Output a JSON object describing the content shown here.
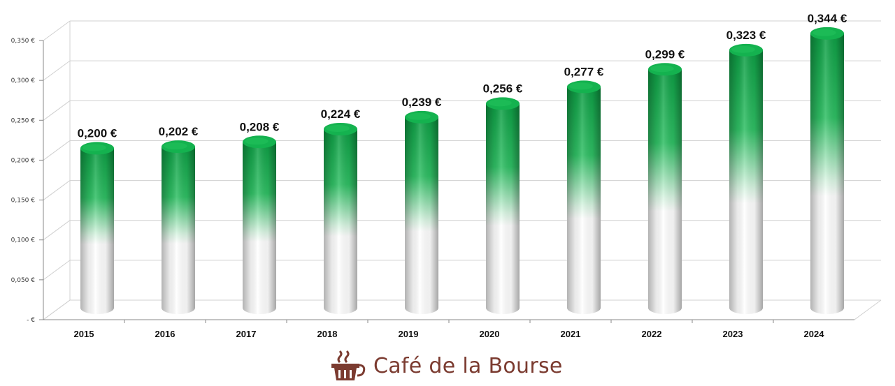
{
  "chart_data": {
    "type": "bar",
    "title": "",
    "xlabel": "",
    "ylabel": "",
    "categories": [
      "2015",
      "2016",
      "2017",
      "2018",
      "2019",
      "2020",
      "2021",
      "2022",
      "2023",
      "2024"
    ],
    "values": [
      0.2,
      0.202,
      0.208,
      0.224,
      0.239,
      0.256,
      0.277,
      0.299,
      0.323,
      0.344
    ],
    "data_labels": [
      "0,200 €",
      "0,202 €",
      "0,208 €",
      "0,224 €",
      "0,239 €",
      "0,256 €",
      "0,277 €",
      "0,299 €",
      "0,323 €",
      "0,344 €"
    ],
    "y_ticks": [
      0,
      0.05,
      0.1,
      0.15,
      0.2,
      0.25,
      0.3,
      0.35
    ],
    "y_tick_labels": [
      "-  €",
      "0,050 €",
      "0,100 €",
      "0,150 €",
      "0,200 €",
      "0,250 €",
      "0,300 €",
      "0,350 €"
    ],
    "ylim": [
      0,
      0.35
    ],
    "grid": true,
    "legend": "none",
    "bar_style": "3d-cylinder",
    "colors": {
      "bar_top": "#0e9e45",
      "bar_bottom": "#ffffff",
      "grid": "#d0d0d0"
    }
  },
  "logo": {
    "text": "Café de la Bourse",
    "icon": "coffee-cup-icon",
    "color": "#7b3b30"
  }
}
